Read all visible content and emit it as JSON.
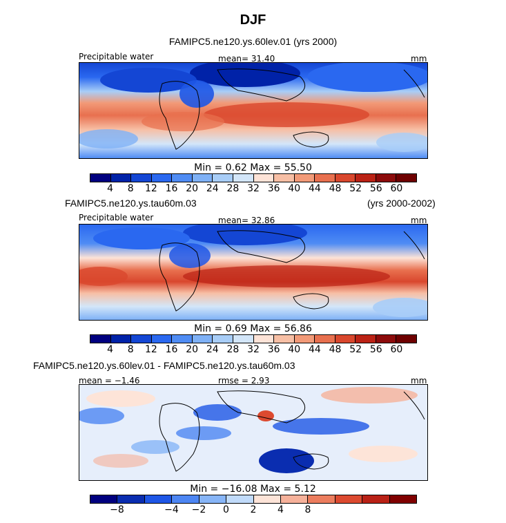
{
  "figure_title": "DJF",
  "colors_main": [
    "#00007f",
    "#0022a8",
    "#1446d4",
    "#2a68f0",
    "#4f8cf4",
    "#7fb1f6",
    "#a8cdf7",
    "#d3e6f9",
    "#fde3d7",
    "#f7bfa5",
    "#f29a78",
    "#e8704f",
    "#d9472d",
    "#bb2215",
    "#8c0b0b",
    "#6e0000"
  ],
  "colors_diff": [
    "#00007f",
    "#0a2db0",
    "#1e56e6",
    "#4d86f3",
    "#87b5f7",
    "#c1dbfa",
    "#fde4d8",
    "#f6b19a",
    "#ec7d5e",
    "#dc4a30",
    "#b92116",
    "#800000"
  ],
  "panels": [
    {
      "subtitle": "FAMIPC5.ne120.ys.60lev.01 (yrs 2000)",
      "subtitle_right": "",
      "label_left": "Precipitable water",
      "label_center": "mean=  31.40",
      "label_right": "mm",
      "minmax": "Min =    0.62  Max =   55.50"
    },
    {
      "subtitle": "FAMIPC5.ne120.ys.tau60m.03",
      "subtitle_right": "(yrs 2000-2002)",
      "label_left": "Precipitable water",
      "label_center": "mean=  32.86",
      "label_right": "mm",
      "minmax": "Min =    0.69  Max =   56.86"
    },
    {
      "subtitle": "FAMIPC5.ne120.ys.60lev.01 - FAMIPC5.ne120.ys.tau60m.03",
      "subtitle_right": "",
      "label_left": "mean =  −1.46",
      "label_center": "rmse =   2.93",
      "label_right": "mm",
      "minmax": "Min = −16.08  Max =    5.12"
    }
  ],
  "chart_data": [
    {
      "type": "heatmap",
      "title": "FAMIPC5.ne120.ys.60lev.01 (yrs 2000)",
      "variable": "Precipitable water",
      "units": "mm",
      "mean": 31.4,
      "min": 0.62,
      "max": 55.5,
      "colorbar_ticks": [
        "4",
        "8",
        "12",
        "16",
        "20",
        "24",
        "28",
        "32",
        "36",
        "40",
        "44",
        "48",
        "52",
        "56",
        "60"
      ]
    },
    {
      "type": "heatmap",
      "title": "FAMIPC5.ne120.ys.tau60m.03 (yrs 2000-2002)",
      "variable": "Precipitable water",
      "units": "mm",
      "mean": 32.86,
      "min": 0.69,
      "max": 56.86,
      "colorbar_ticks": [
        "4",
        "8",
        "12",
        "16",
        "20",
        "24",
        "28",
        "32",
        "36",
        "40",
        "44",
        "48",
        "52",
        "56",
        "60"
      ]
    },
    {
      "type": "heatmap",
      "title": "FAMIPC5.ne120.ys.60lev.01 - FAMIPC5.ne120.ys.tau60m.03",
      "units": "mm",
      "mean": -1.46,
      "rmse": 2.93,
      "min": -16.08,
      "max": 5.12,
      "colorbar_ticks": [
        "−8",
        "−4",
        "−2",
        "0",
        "2",
        "4",
        "8"
      ]
    }
  ]
}
